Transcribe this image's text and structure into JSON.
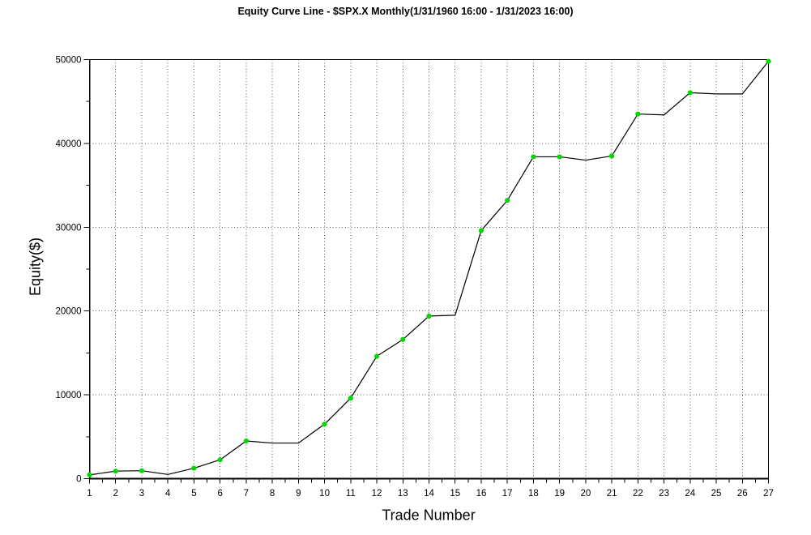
{
  "window": {
    "background": "#ffffff"
  },
  "chart_data": {
    "type": "line",
    "title": "Equity Curve Line - $SPX.X Monthly(1/31/1960 16:00 - 1/31/2023 16:00)",
    "xlabel": "Trade Number",
    "ylabel": "Equity($)",
    "x": [
      1,
      2,
      3,
      4,
      5,
      6,
      7,
      8,
      9,
      10,
      11,
      12,
      13,
      14,
      15,
      16,
      17,
      18,
      19,
      20,
      21,
      22,
      23,
      24,
      25,
      26,
      27
    ],
    "series": [
      {
        "name": "Equity",
        "values": [
          450,
          900,
          950,
          500,
          1250,
          2250,
          4500,
          4250,
          4250,
          6500,
          9600,
          14600,
          16600,
          19400,
          19500,
          29600,
          33200,
          38400,
          38400,
          38000,
          38500,
          43500,
          43400,
          46050,
          45900,
          45900,
          49800
        ]
      }
    ],
    "marker_trades": [
      1,
      2,
      3,
      5,
      6,
      7,
      10,
      11,
      12,
      13,
      14,
      16,
      17,
      18,
      19,
      21,
      22,
      24,
      27
    ],
    "xlim": [
      1,
      27
    ],
    "ylim": [
      0,
      50000
    ],
    "x_major_ticks": [
      1,
      2,
      3,
      4,
      5,
      6,
      7,
      8,
      9,
      10,
      11,
      12,
      13,
      14,
      15,
      16,
      17,
      18,
      19,
      20,
      21,
      22,
      23,
      24,
      25,
      26,
      27
    ],
    "y_major_ticks": [
      0,
      10000,
      20000,
      30000,
      40000,
      50000
    ],
    "y_minor_ticks": [
      5000,
      15000,
      25000,
      35000,
      45000
    ],
    "x_minor_step": 0.5,
    "grid": "dotted",
    "legend": "none",
    "colors": {
      "line": "#000000",
      "marker": "#00d900",
      "grid": "#5a5a5a",
      "axis": "#000000",
      "text": "#000000",
      "background": "#ffffff"
    }
  }
}
